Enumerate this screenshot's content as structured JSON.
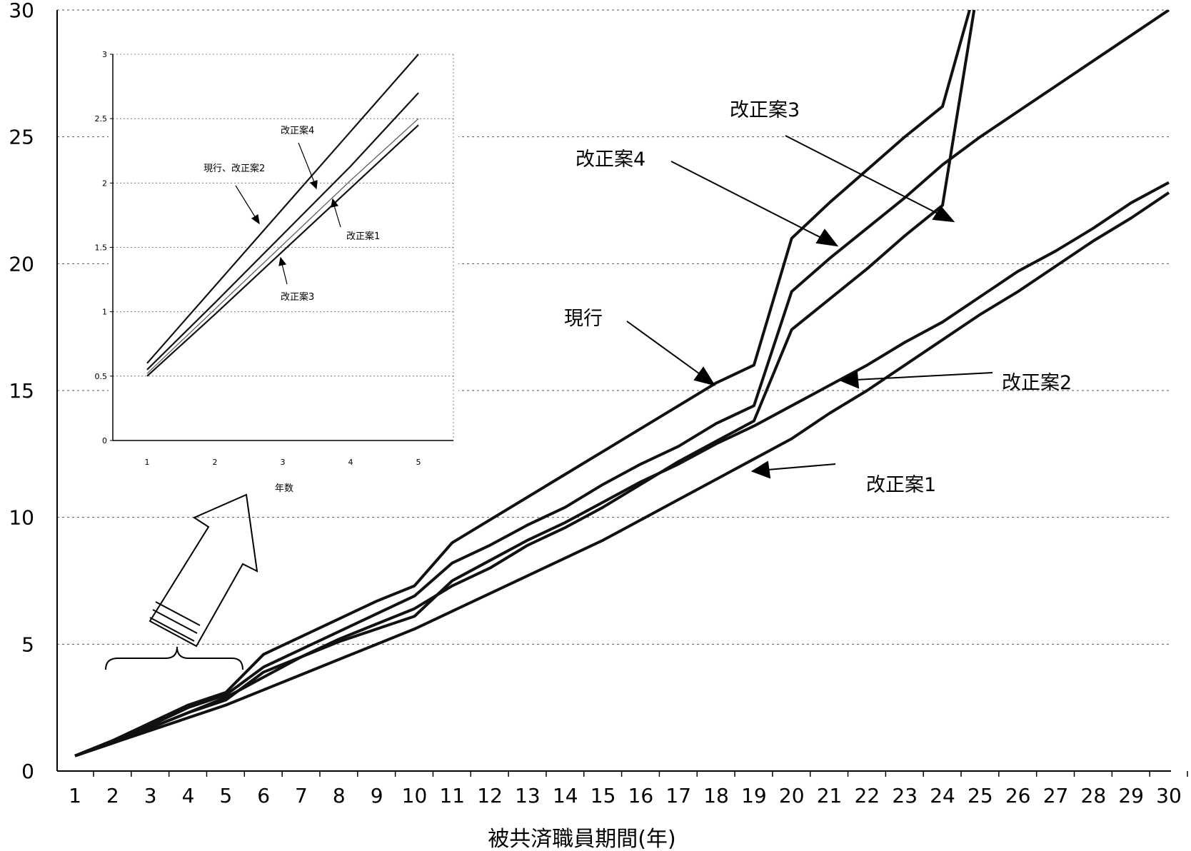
{
  "chart_data": [
    {
      "type": "line",
      "xlabel": "被共済職員期間(年)",
      "ylabel": "",
      "x": [
        1,
        2,
        3,
        4,
        5,
        6,
        7,
        8,
        9,
        10,
        11,
        12,
        13,
        14,
        15,
        16,
        17,
        18,
        19,
        20,
        21,
        22,
        23,
        24,
        25,
        26,
        27,
        28,
        29,
        30
      ],
      "xlim": [
        1,
        30
      ],
      "ylim": [
        0,
        30
      ],
      "yticks": [
        0,
        5,
        10,
        15,
        20,
        25,
        30
      ],
      "grid": "horizontal dashed",
      "series": [
        {
          "name": "現行",
          "values": [
            0.6,
            1.2,
            1.9,
            2.6,
            3.1,
            4.6,
            5.3,
            6.0,
            6.7,
            7.3,
            9.0,
            9.9,
            10.8,
            11.7,
            12.6,
            13.5,
            14.4,
            15.3,
            16.0,
            21.0,
            22.4,
            23.7,
            25.0,
            26.2,
            31.5,
            31.5,
            31.5,
            31.5,
            31.5,
            31.5
          ]
        },
        {
          "name": "改正案3",
          "values": [
            0.6,
            1.1,
            1.7,
            2.3,
            2.9,
            3.7,
            4.5,
            5.2,
            5.8,
            6.4,
            7.3,
            8.0,
            8.9,
            9.6,
            10.4,
            11.3,
            12.2,
            13.0,
            13.8,
            17.4,
            18.6,
            19.8,
            21.1,
            22.3,
            31.5,
            31.5,
            31.5,
            31.5,
            31.5,
            31.5
          ]
        },
        {
          "name": "改正案4",
          "values": [
            0.6,
            1.2,
            1.8,
            2.5,
            3.0,
            4.1,
            4.8,
            5.5,
            6.2,
            6.9,
            8.2,
            8.9,
            9.7,
            10.4,
            11.3,
            12.1,
            12.8,
            13.7,
            14.4,
            18.9,
            20.2,
            21.4,
            22.6,
            23.9,
            25.0,
            26.0,
            27.0,
            28.0,
            29.0,
            30.0
          ]
        },
        {
          "name": "改正案2",
          "values": [
            0.6,
            1.1,
            1.7,
            2.3,
            2.8,
            3.9,
            4.5,
            5.1,
            5.6,
            6.1,
            7.5,
            8.3,
            9.1,
            9.8,
            10.6,
            11.4,
            12.1,
            12.9,
            13.6,
            14.4,
            15.2,
            16.0,
            16.9,
            17.7,
            18.7,
            19.7,
            20.5,
            21.4,
            22.4,
            23.2
          ]
        },
        {
          "name": "改正案1",
          "values": [
            0.6,
            1.1,
            1.6,
            2.1,
            2.6,
            3.2,
            3.8,
            4.4,
            5.0,
            5.6,
            6.3,
            7.0,
            7.7,
            8.4,
            9.1,
            9.9,
            10.7,
            11.5,
            12.3,
            13.1,
            14.1,
            15.0,
            16.0,
            17.0,
            18.0,
            18.9,
            19.9,
            20.9,
            21.8,
            22.8
          ]
        }
      ],
      "annotations": [
        "現行",
        "改正案4",
        "改正案3",
        "改正案2",
        "改正案1"
      ]
    },
    {
      "type": "line",
      "xlabel": "年数",
      "x": [
        1,
        2,
        3,
        4,
        5
      ],
      "xlim": [
        1,
        5
      ],
      "ylim": [
        0,
        3
      ],
      "yticks": [
        "0",
        "0.5",
        "1",
        "1.5",
        "2",
        "2.5",
        "3"
      ],
      "series": [
        {
          "name": "現行、改正案2",
          "values": [
            0.6,
            1.2,
            1.8,
            2.4,
            3.0
          ]
        },
        {
          "name": "改正案4",
          "values": [
            0.55,
            1.07,
            1.6,
            2.13,
            2.7
          ]
        },
        {
          "name": "改正案1",
          "values": [
            0.52,
            1.02,
            1.52,
            2.02,
            2.5
          ]
        },
        {
          "name": "改正案3",
          "values": [
            0.5,
            0.98,
            1.47,
            1.96,
            2.45
          ]
        }
      ],
      "annotations": [
        "現行、改正案2",
        "改正案4",
        "改正案1",
        "改正案3"
      ]
    }
  ]
}
